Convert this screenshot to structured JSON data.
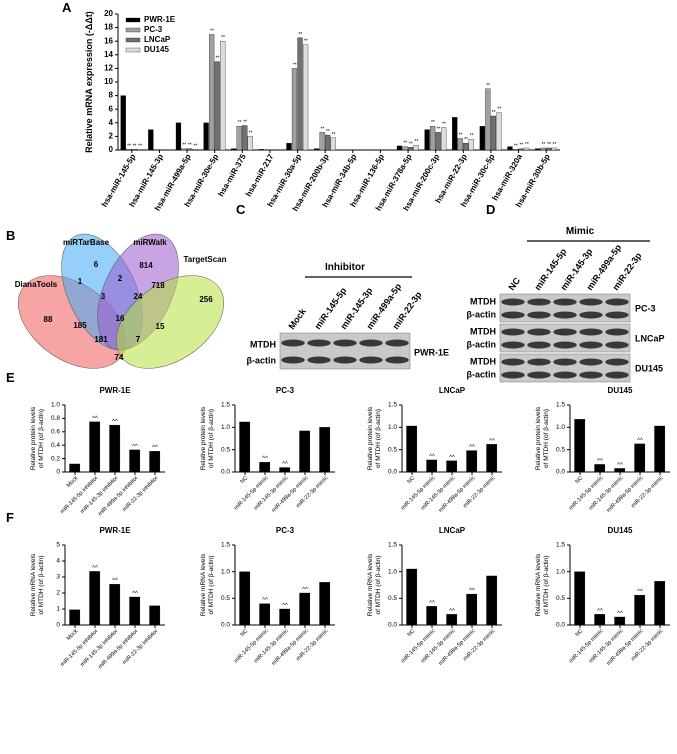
{
  "panel_labels": [
    "A",
    "B",
    "C",
    "D",
    "E",
    "F"
  ],
  "chart_data": [
    {
      "type": "bar",
      "ylabel": "Relative mRNA expression (-ΔΔt)",
      "legend": "upper-left",
      "categories": [
        "hsa-miR-145-5p",
        "hsa-miR-145-3p",
        "hsa-miR-499a-5p",
        "hsa-miR-30e-5p",
        "hsa-miR-375",
        "hsa-miR-217",
        "hsa-miR-30a-5p",
        "hsa-miR-200b-3p",
        "hsa-miR-34b-5p",
        "hsa-miR-136-5p",
        "hsa-miR-378a-5p",
        "hsa-miR-200c-3p",
        "hsa-miR-22-3p",
        "hsa-miR-30c-5p",
        "hsa-miR-320a",
        "hsa-miR-30b-5p"
      ],
      "ylim": [
        0,
        20
      ],
      "yticks": [
        0,
        2,
        4,
        6,
        8,
        10,
        12,
        14,
        16,
        18,
        20
      ],
      "series": [
        {
          "name": "PWR-1E",
          "color": "#000000",
          "values": [
            8,
            3,
            4,
            4,
            0.2,
            0.1,
            1,
            0.2,
            0,
            0,
            0.6,
            3,
            4.8,
            3.5,
            0.5,
            0.2
          ]
        },
        {
          "name": "PC-3",
          "color": "#a0a0a0",
          "values": [
            0.1,
            0,
            0.2,
            17,
            3.5,
            0,
            12,
            2.6,
            0,
            0,
            0.5,
            3.5,
            1.7,
            9,
            0.1,
            0.3
          ],
          "annotations": [
            "**",
            null,
            "**",
            "**",
            "**",
            null,
            "**",
            "**",
            null,
            null,
            "**",
            "**",
            "**",
            "**",
            "**",
            "**"
          ]
        },
        {
          "name": "LNCaP",
          "color": "#707070",
          "values": [
            0.1,
            0,
            0.2,
            13,
            3.6,
            0,
            16.5,
            2.2,
            0,
            0,
            0.4,
            2.6,
            1,
            5,
            0.2,
            0.3
          ],
          "annotations": [
            "**",
            null,
            "**",
            "**",
            "**",
            null,
            "**",
            "**",
            null,
            null,
            "**",
            "**",
            "**",
            "**",
            "**",
            "**"
          ]
        },
        {
          "name": "DU145",
          "color": "#dcdcdc",
          "values": [
            0.1,
            0,
            0.1,
            16,
            2,
            0,
            15.5,
            1.8,
            0,
            0,
            0.7,
            3.3,
            1.6,
            5.5,
            0.3,
            0.3
          ],
          "annotations": [
            "**",
            null,
            "**",
            "**",
            "**",
            null,
            "**",
            "**",
            null,
            null,
            "**",
            "**",
            "**",
            "**",
            "**",
            "**"
          ]
        }
      ]
    },
    {
      "type": "bar",
      "title": "PWR-1E",
      "ylabel": [
        "Relative protein levels",
        "of MTDH (of β-actin)"
      ],
      "categories": [
        "Mock",
        "miR-145-5p inhibitor",
        "miR-145-3p inhibitor",
        "miR-499a-5p inhibitor",
        "miR-22-3p inhibitor"
      ],
      "values": [
        0.12,
        0.75,
        0.7,
        0.33,
        0.31
      ],
      "annotations": [
        null,
        "^^",
        "^^",
        "^^",
        "^^"
      ],
      "color": "#000000",
      "ylim": [
        0,
        1
      ],
      "yticks": [
        0,
        0.2,
        0.4,
        0.6,
        0.8,
        {
          "value": 1,
          "label": "1.0"
        }
      ]
    },
    {
      "type": "bar",
      "title": "PC-3",
      "ylabel": [
        "Relative protein levels",
        "of MTDH (of β-actin)"
      ],
      "categories": [
        "NC",
        "miR-145-5p mimic",
        "miR-145-3p mimic",
        "miR-499a-5p mimic",
        "miR-22-3p mimic"
      ],
      "values": [
        1.12,
        0.22,
        0.1,
        0.92,
        1.0
      ],
      "annotations": [
        null,
        "^^",
        "^^",
        null,
        null
      ],
      "color": "#000000",
      "ylim": [
        0,
        1.5
      ],
      "yticks": [
        {
          "value": 0,
          "label": "0.0"
        },
        0.5,
        {
          "value": 1,
          "label": "1.0"
        },
        1.5
      ]
    },
    {
      "type": "bar",
      "title": "LNCaP",
      "ylabel": [
        "Relative protein levels",
        "of MTDH (of β-actin)"
      ],
      "categories": [
        "NC",
        "miR-145-5p mimic",
        "miR-145-3p mimic",
        "miR-499a-5p mimic",
        "miR-22-3p mimic"
      ],
      "values": [
        1.03,
        0.27,
        0.25,
        0.48,
        0.62
      ],
      "annotations": [
        null,
        "^^",
        "^^",
        "^^",
        "^^"
      ],
      "color": "#000000",
      "ylim": [
        0,
        1.5
      ],
      "yticks": [
        {
          "value": 0,
          "label": "0.0"
        },
        0.5,
        {
          "value": 1,
          "label": "1.0"
        },
        1.5
      ]
    },
    {
      "type": "bar",
      "title": "DU145",
      "ylabel": [
        "Relative protein levels",
        "of MTDH (of β-actin)"
      ],
      "categories": [
        "NC",
        "miR-145-5p mimic",
        "miR-145-3p mimic",
        "miR-499a-5p mimic",
        "miR-22-3p mimic"
      ],
      "values": [
        1.18,
        0.17,
        0.08,
        0.63,
        1.03
      ],
      "annotations": [
        null,
        "^^",
        "^^",
        "^^",
        null
      ],
      "color": "#000000",
      "ylim": [
        0,
        1.5
      ],
      "yticks": [
        {
          "value": 0,
          "label": "0.0"
        },
        0.5,
        {
          "value": 1,
          "label": "1.0"
        },
        1.5
      ]
    },
    {
      "type": "bar",
      "title": "PWR-1E",
      "ylabel": [
        "Relative mRNA levels",
        "of MTDH (of β-actin)"
      ],
      "categories": [
        "Mock",
        "miR-145-5p inhibitor",
        "miR-145-3p inhibitor",
        "miR-499a-5p inhibitor",
        "miR-22-3p inhibitor"
      ],
      "values": [
        0.95,
        3.35,
        2.55,
        1.75,
        1.2
      ],
      "annotations": [
        null,
        "^^",
        "^^",
        "^^",
        null
      ],
      "color": "#000000",
      "ylim": [
        0,
        5
      ],
      "yticks": [
        0,
        1,
        2,
        3,
        4,
        5
      ]
    },
    {
      "type": "bar",
      "title": "PC-3",
      "ylabel": [
        "Relative mRNA levels",
        "of MTDH (of β-actin)"
      ],
      "categories": [
        "NC",
        "miR-145-5p mimic",
        "miR-145-3p mimic",
        "miR-499a-5p mimic",
        "miR-22-3p mimic"
      ],
      "values": [
        1.0,
        0.4,
        0.3,
        0.6,
        0.8
      ],
      "annotations": [
        null,
        "^^",
        "^^",
        "^^",
        null
      ],
      "color": "#000000",
      "ylim": [
        0,
        1.5
      ],
      "yticks": [
        {
          "value": 0,
          "label": "0.0"
        },
        0.5,
        {
          "value": 1,
          "label": "1.0"
        },
        1.5
      ]
    },
    {
      "type": "bar",
      "title": "LNCaP",
      "ylabel": [
        "Relative mRNA levels",
        "of MTDH (of β-actin)"
      ],
      "categories": [
        "NC",
        "miR-145-5p mimic",
        "miR-145-3p mimic",
        "miR-499a-5p mimic",
        "miR-22-3p mimic"
      ],
      "values": [
        1.05,
        0.35,
        0.2,
        0.58,
        0.92
      ],
      "annotations": [
        null,
        "^^",
        "^^",
        "^^",
        null
      ],
      "color": "#000000",
      "ylim": [
        0,
        1.5
      ],
      "yticks": [
        {
          "value": 0,
          "label": "0.0"
        },
        0.5,
        {
          "value": 1,
          "label": "1.0"
        },
        1.5
      ]
    },
    {
      "type": "bar",
      "title": "DU145",
      "ylabel": [
        "Relative mRNA levels",
        "of MTDH (of β-actin)"
      ],
      "categories": [
        "NC",
        "miR-145-5p mimic",
        "miR-145-3p mimic",
        "miR-499a-5p mimic",
        "miR-22-3p mimic"
      ],
      "values": [
        1.0,
        0.2,
        0.15,
        0.56,
        0.82
      ],
      "annotations": [
        null,
        "^^",
        "^^",
        "^^",
        null
      ],
      "color": "#000000",
      "ylim": [
        0,
        1.5
      ],
      "yticks": [
        {
          "value": 0,
          "label": "0.0"
        },
        0.5,
        {
          "value": 1,
          "label": "1.0"
        },
        1.5
      ]
    }
  ],
  "venn": {
    "sets": [
      {
        "name": "DianaTools",
        "color": "#ef5a5a"
      },
      {
        "name": "miRTarBase",
        "color": "#3fa9f5"
      },
      {
        "name": "miRWalk",
        "color": "#9b59d0"
      },
      {
        "name": "TargetScan",
        "color": "#b8e03c"
      }
    ],
    "regions": [
      88,
      6,
      814,
      256,
      1,
      2,
      718,
      3,
      24,
      185,
      16,
      15,
      181,
      7,
      74
    ]
  },
  "blot_c": {
    "title": "Inhibitor",
    "lanes": [
      "Mock",
      "miR-145-5p",
      "miR-145-3p",
      "miR-499a-5p",
      "miR-22-3p"
    ],
    "rows": [
      "MTDH",
      "β-actin"
    ],
    "cell_line": "PWR-1E"
  },
  "blot_d": {
    "title": "Mimic",
    "lanes": [
      "NC",
      "miR-145-5p",
      "miR-145-3p",
      "miR-499a-5p",
      "miR-22-3p"
    ],
    "panels": [
      {
        "rows": [
          "MTDH",
          "β-actin"
        ],
        "cell_line": "PC-3"
      },
      {
        "rows": [
          "MTDH",
          "β-actin"
        ],
        "cell_line": "LNCaP"
      },
      {
        "rows": [
          "MTDH",
          "β-actin"
        ],
        "cell_line": "DU145"
      }
    ]
  }
}
